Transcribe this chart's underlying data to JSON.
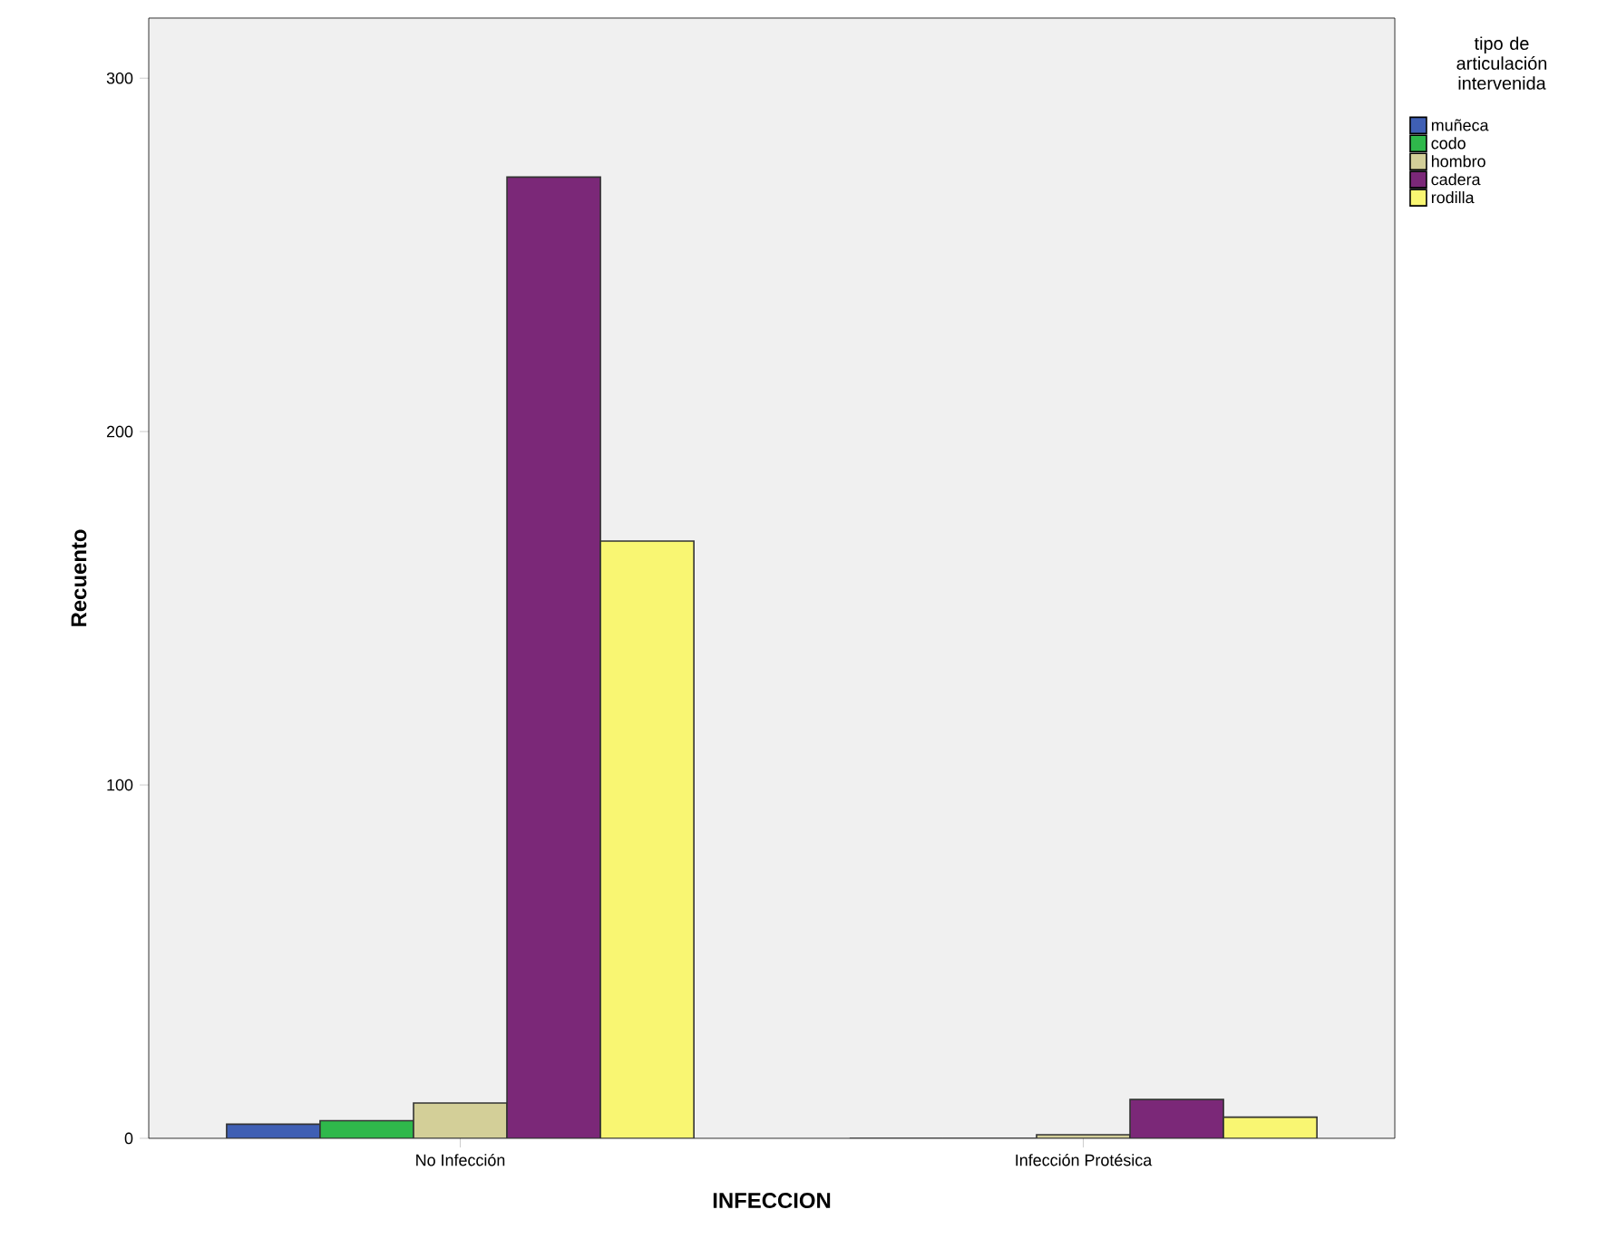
{
  "chart_data": {
    "type": "bar",
    "xlabel": "INFECCION",
    "ylabel": "Recuento",
    "legend_title": "tipo de articulación intervenida",
    "categories": [
      "No Infección",
      "Infección Protésica"
    ],
    "series": [
      {
        "name": "muñeca",
        "color": "#3f5fb4",
        "values": [
          4,
          0
        ]
      },
      {
        "name": "codo",
        "color": "#2fb84b",
        "values": [
          5,
          0
        ]
      },
      {
        "name": "hombro",
        "color": "#d3cf98",
        "values": [
          10,
          1
        ]
      },
      {
        "name": "cadera",
        "color": "#7b2878",
        "values": [
          272,
          11
        ]
      },
      {
        "name": "rodilla",
        "color": "#f9f672",
        "values": [
          169,
          6
        ]
      }
    ],
    "ylim": [
      0,
      317
    ],
    "yticks": [
      0,
      100,
      200,
      300
    ],
    "grid": false,
    "legend": "right"
  }
}
